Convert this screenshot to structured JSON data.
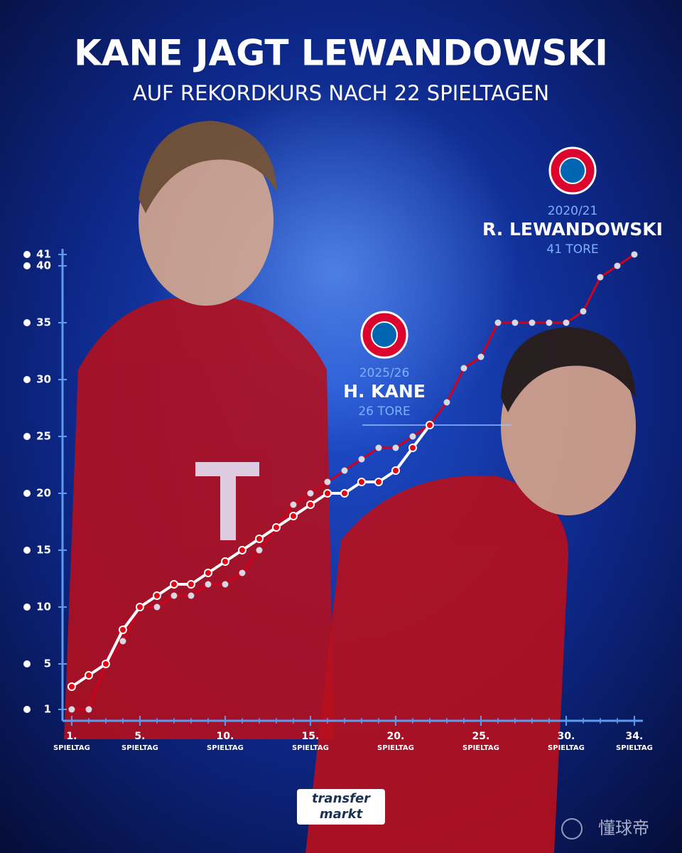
{
  "chart_data": {
    "type": "line",
    "title": "KANE JAGT LEWANDOWSKI",
    "subtitle": "AUF REKORDKURS NACH 22 SPIELTAGEN",
    "x_sublabel": "SPIELTAG",
    "x": [
      1,
      2,
      3,
      4,
      5,
      6,
      7,
      8,
      9,
      10,
      11,
      12,
      13,
      14,
      15,
      16,
      17,
      18,
      19,
      20,
      21,
      22,
      23,
      24,
      25,
      26,
      27,
      28,
      29,
      30,
      31,
      32,
      33,
      34
    ],
    "series": [
      {
        "name": "H. KANE",
        "season": "2025/26",
        "total": "26 TORE",
        "color": "#ffffff",
        "dot_color": "#e30613",
        "values": [
          3,
          4,
          5,
          8,
          10,
          11,
          12,
          12,
          13,
          14,
          15,
          16,
          17,
          18,
          19,
          20,
          20,
          21,
          21,
          22,
          24,
          26,
          null,
          null,
          null,
          null,
          null,
          null,
          null,
          null,
          null,
          null,
          null,
          null
        ]
      },
      {
        "name": "R. LEWANDOWSKI",
        "season": "2020/21",
        "total": "41 TORE",
        "color": "#d0021b",
        "dot_color": "#d9d9e6",
        "values": [
          1,
          1,
          5,
          7,
          10,
          10,
          11,
          11,
          12,
          12,
          13,
          15,
          17,
          19,
          20,
          21,
          22,
          23,
          24,
          24,
          25,
          26,
          28,
          31,
          32,
          35,
          35,
          35,
          35,
          35,
          36,
          39,
          40,
          41
        ]
      }
    ],
    "xlim": [
      0.46,
      34.5
    ],
    "ylim": [
      0,
      41.5
    ],
    "xticks": [
      {
        "value": 1,
        "label": "1."
      },
      {
        "value": 5,
        "label": "5."
      },
      {
        "value": 10,
        "label": "10."
      },
      {
        "value": 15,
        "label": "15."
      },
      {
        "value": 20,
        "label": "20."
      },
      {
        "value": 25,
        "label": "25."
      },
      {
        "value": 30,
        "label": "30."
      },
      {
        "value": 34,
        "label": "34."
      }
    ],
    "yticks": [
      1,
      5,
      10,
      15,
      20,
      25,
      30,
      35,
      40,
      41
    ],
    "brand": [
      "transfer",
      "markt"
    ],
    "watermark": "懂球帝"
  }
}
